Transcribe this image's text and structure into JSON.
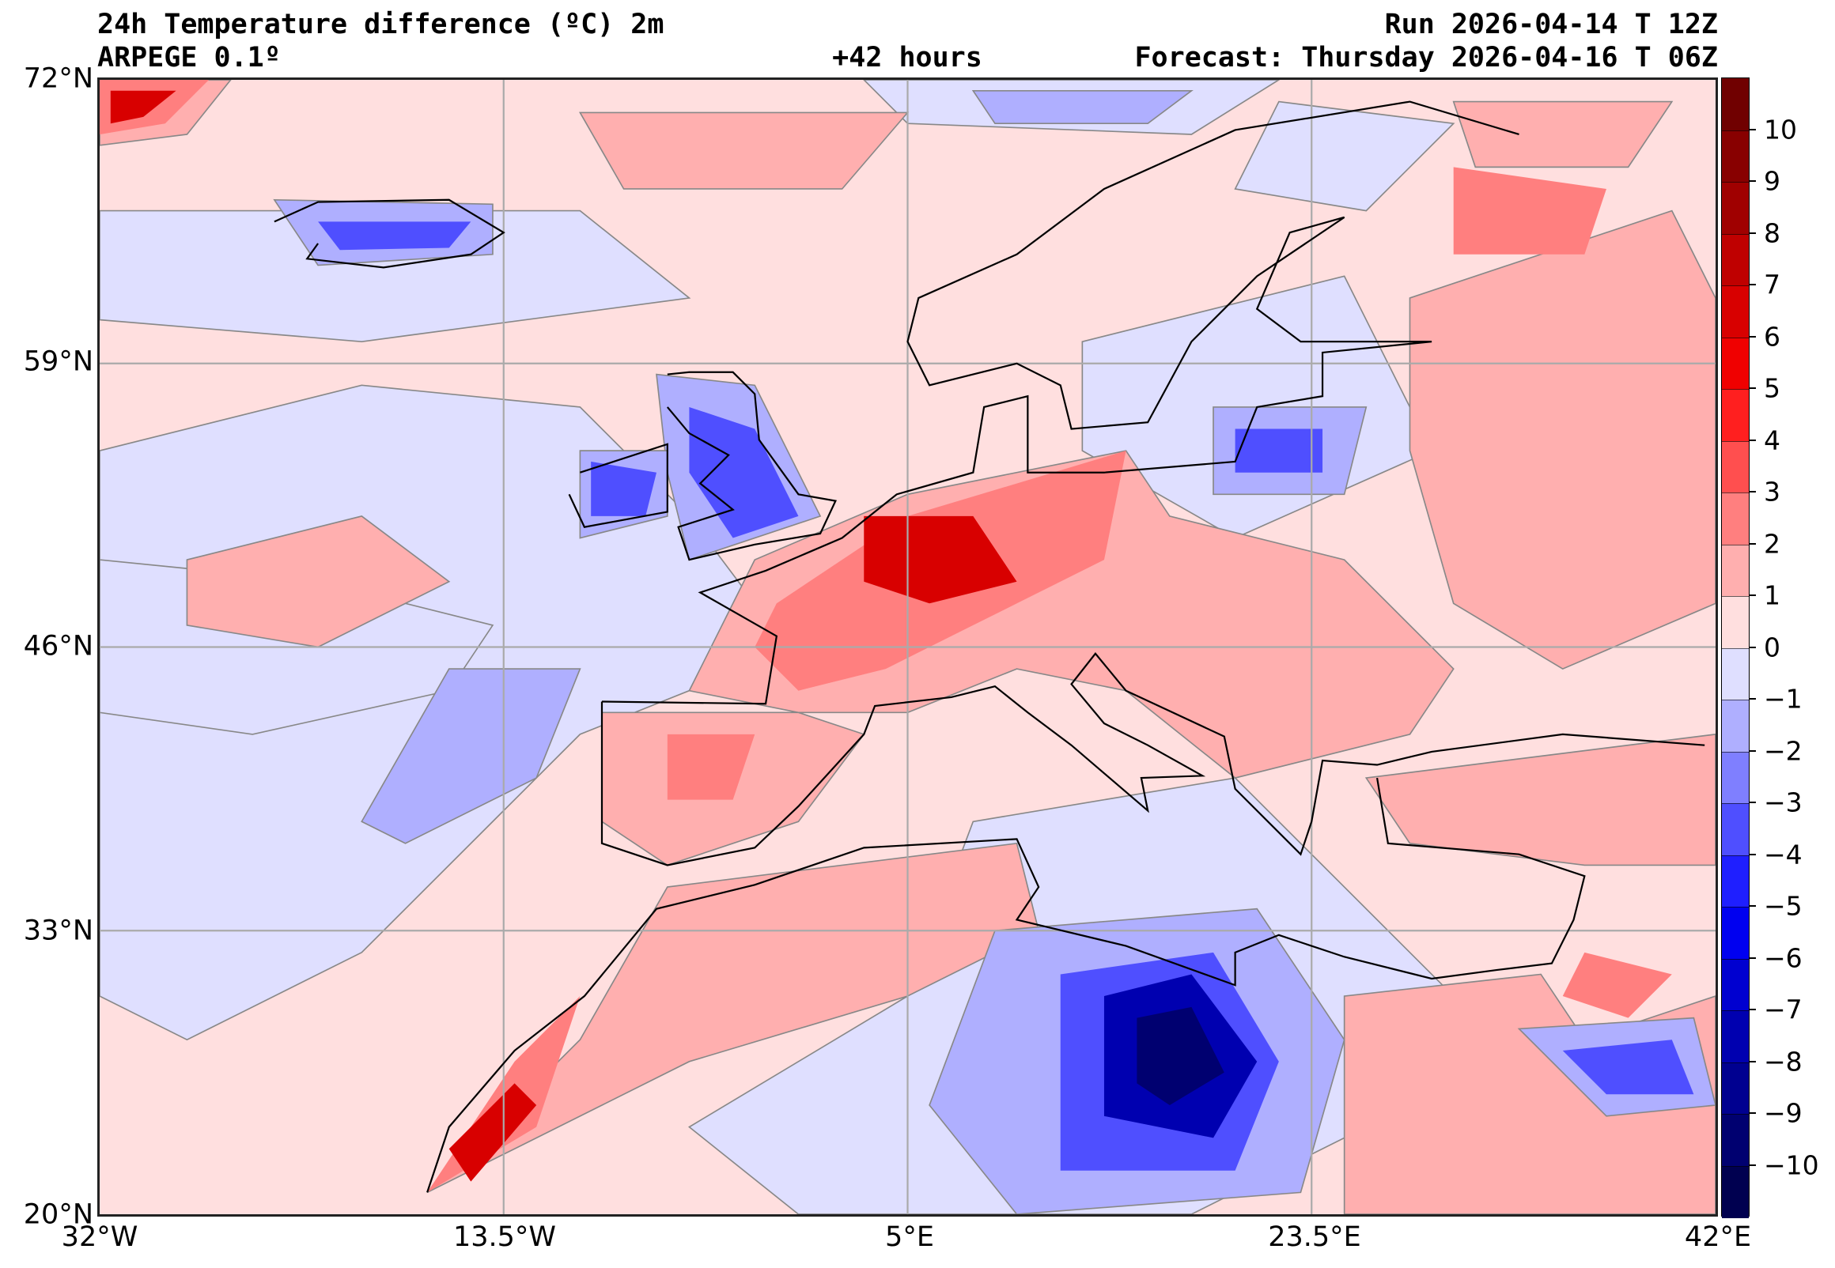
{
  "header": {
    "title": "24h Temperature difference (ºC) 2m",
    "model": "ARPEGE 0.1º",
    "lead_time": "+42 hours",
    "run": "Run 2026-04-14 T 12Z",
    "forecast": "Forecast: Thursday 2026-04-16 T 06Z"
  },
  "axes": {
    "lat_labels": [
      "72°N",
      "59°N",
      "46°N",
      "33°N",
      "20°N"
    ],
    "lon_labels": [
      "32°W",
      "13.5°W",
      "5°E",
      "23.5°E",
      "42°E"
    ]
  },
  "colorbar": {
    "ticks": [
      "10",
      "9",
      "8",
      "7",
      "6",
      "5",
      "4",
      "3",
      "2",
      "1",
      "0",
      "−1",
      "−2",
      "−3",
      "−4",
      "−5",
      "−6",
      "−7",
      "−8",
      "−9",
      "−10"
    ],
    "band_colors": [
      "#700000",
      "#880000",
      "#a00000",
      "#bf0000",
      "#d80000",
      "#f00000",
      "#ff1f1f",
      "#ff4f4f",
      "#ff7f7f",
      "#ffafaf",
      "#ffdfdf",
      "#dfdfff",
      "#afafff",
      "#7f7fff",
      "#4f4fff",
      "#1f1fff",
      "#0000f0",
      "#0000d0",
      "#0000b0",
      "#000090",
      "#000070",
      "#000050"
    ]
  }
}
